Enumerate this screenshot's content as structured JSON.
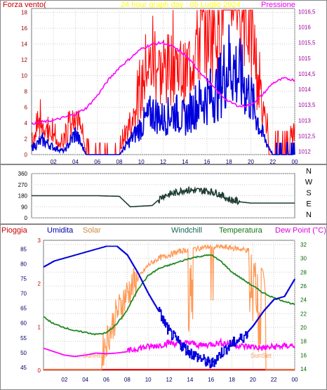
{
  "top": {
    "title": "24 hour graph day : 05 Luglio 2024",
    "left_label": "Forza vento(",
    "right_label": "Pressione",
    "left_ticks": [
      "0",
      "2",
      "4",
      "6",
      "8",
      "10",
      "12",
      "14",
      "16",
      "18"
    ],
    "right_ticks": [
      "1012",
      "1012,5",
      "1013",
      "1013,5",
      "1014",
      "1014,5",
      "1015",
      "1015,5",
      "1016",
      "1016,5"
    ],
    "x_ticks": [
      "02",
      "04",
      "06",
      "08",
      "10",
      "12",
      "14",
      "16",
      "18",
      "20",
      "22",
      "00"
    ],
    "colors": {
      "wind_gust": "#ff0000",
      "wind": "#0000dd",
      "pressure": "#ff00ff",
      "title": "#ffff00"
    }
  },
  "mid": {
    "left_ticks": [
      "0",
      "90",
      "180",
      "270",
      "360"
    ],
    "compass": [
      "N",
      "W",
      "S",
      "E",
      "N"
    ],
    "colors": {
      "direction": "#1f3d35"
    }
  },
  "bottom": {
    "labels": {
      "rain": "Pioggia",
      "humidity": "Umidita",
      "solar": "Solar",
      "windchill": "Windchill",
      "temperature": "Temperatura",
      "dewpoint": "Dew Point (°C)"
    },
    "left_rain_ticks": [
      "0",
      "1",
      "2",
      "3"
    ],
    "humidity_ticks": [
      "45",
      "50",
      "55",
      "60",
      "65",
      "70",
      "75",
      "80",
      "85"
    ],
    "temp_ticks": [
      "14",
      "16",
      "18",
      "20",
      "22",
      "24",
      "26",
      "28",
      "30",
      "32"
    ],
    "x_ticks": [
      "02",
      "04",
      "06",
      "08",
      "10",
      "12",
      "14",
      "16",
      "18",
      "20",
      "22",
      "00"
    ],
    "sunrise": "SunRise",
    "sunset": "SunSet",
    "colors": {
      "rain": "#ff0000",
      "humidity": "#0000dd",
      "solar": "#ff9955",
      "temperature": "#228822",
      "dewpoint": "#ff00ff",
      "windchill": "#116655"
    }
  },
  "chart_data": [
    {
      "type": "line",
      "title": "24 hour graph day : 05 Luglio 2024",
      "xlabel": "",
      "x": [
        0,
        1,
        2,
        3,
        4,
        5,
        6,
        7,
        8,
        9,
        10,
        11,
        12,
        13,
        14,
        15,
        16,
        17,
        18,
        19,
        20,
        21,
        22,
        23,
        24
      ],
      "series": [
        {
          "name": "Pressione",
          "axis": "right",
          "values": [
            1012.9,
            1012.95,
            1013.0,
            1013.1,
            1013.2,
            1013.4,
            1013.8,
            1014.3,
            1014.7,
            1015.0,
            1015.3,
            1015.45,
            1015.5,
            1015.35,
            1015.1,
            1014.7,
            1014.3,
            1013.9,
            1013.6,
            1013.45,
            1013.5,
            1013.8,
            1014.2,
            1014.35,
            1014.3
          ]
        },
        {
          "name": "Forza vento",
          "axis": "left",
          "values": [
            1,
            2,
            1,
            0.5,
            3,
            0,
            0,
            0,
            0,
            2,
            4,
            6,
            5,
            6,
            5,
            7,
            8,
            9,
            13,
            11,
            8,
            3,
            0,
            0,
            0
          ]
        }
      ],
      "ylim_left": [
        0,
        18
      ],
      "ylim_right": [
        1011.9,
        1016.5
      ]
    },
    {
      "type": "line",
      "x": [
        0,
        2,
        4,
        6,
        8,
        9,
        10,
        11,
        12,
        13,
        14,
        15,
        16,
        17,
        18,
        19,
        20,
        22,
        24
      ],
      "series": [
        {
          "name": "direction",
          "values": [
            180,
            180,
            180,
            180,
            175,
            90,
            95,
            100,
            180,
            200,
            230,
            220,
            220,
            200,
            150,
            130,
            120,
            120,
            120
          ]
        }
      ],
      "ylim": [
        0,
        360
      ]
    },
    {
      "type": "line",
      "x": [
        0,
        1,
        2,
        3,
        4,
        5,
        6,
        7,
        8,
        9,
        10,
        11,
        12,
        13,
        14,
        15,
        16,
        17,
        18,
        19,
        20,
        21,
        22,
        23,
        24
      ],
      "series": [
        {
          "name": "Umidita",
          "axis": "humidity",
          "values": [
            79,
            81,
            82,
            83,
            84,
            85,
            86,
            86,
            83,
            77,
            70,
            64,
            57,
            53,
            50,
            48,
            46,
            50,
            53,
            55,
            59,
            64,
            68,
            69,
            75
          ]
        },
        {
          "name": "Temperatura",
          "axis": "temp",
          "values": [
            21.5,
            20.5,
            20,
            19.5,
            19.3,
            19,
            19.2,
            20.5,
            22.5,
            25.5,
            27.5,
            28.5,
            29,
            29.5,
            30,
            30.3,
            30.5,
            29.5,
            28,
            27,
            26,
            25,
            24.3,
            23.8,
            23.3
          ]
        },
        {
          "name": "Dew Point",
          "axis": "temp",
          "values": [
            17,
            16.5,
            16,
            15.8,
            16,
            16.3,
            16.2,
            16.3,
            16.5,
            17,
            17.2,
            17.4,
            17.8,
            17.6,
            17.8,
            17.4,
            17.6,
            17.8,
            17.6,
            17.3,
            17.2,
            17.0,
            17.2,
            17.3,
            17.4
          ]
        },
        {
          "name": "Solar",
          "axis": "temp",
          "values": [
            14,
            14,
            14,
            14,
            14,
            14,
            18,
            22,
            25,
            27,
            29,
            30,
            30.5,
            31,
            31.3,
            31.5,
            31.7,
            31.6,
            31.5,
            31.3,
            31,
            28,
            14,
            14,
            14
          ]
        }
      ],
      "ylim_humidity": [
        44,
        88
      ],
      "ylim_temp": [
        14,
        32.5
      ]
    }
  ]
}
